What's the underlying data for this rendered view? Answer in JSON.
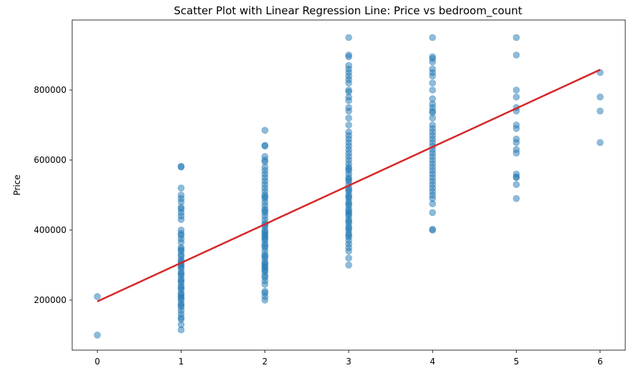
{
  "chart_data": {
    "type": "scatter",
    "title": "Scatter Plot with Linear Regression Line: Price vs bedroom_count",
    "xlabel": "",
    "ylabel": "Price",
    "xlim": [
      -0.3,
      6.3
    ],
    "ylim": [
      57000,
      1000000
    ],
    "x_ticks": [
      0,
      1,
      2,
      3,
      4,
      5,
      6
    ],
    "y_ticks": [
      200000,
      400000,
      600000,
      800000
    ],
    "x_tick_labels": [
      "0",
      "1",
      "2",
      "3",
      "4",
      "5",
      "6"
    ],
    "y_tick_labels": [
      "200000",
      "400000",
      "600000",
      "800000"
    ],
    "grid": false,
    "colors": {
      "points": "#1f77b4",
      "regression": "#d62728",
      "axes": "#000000"
    },
    "series": [
      {
        "kind": "points",
        "groups": [
          {
            "x": 0,
            "y": [
              100000,
              210000
            ]
          },
          {
            "x": 1,
            "y": [
              115000,
              130000,
              145000,
              150000,
              160000,
              170000,
              180000,
              185000,
              190000,
              200000,
              205000,
              210000,
              215000,
              220000,
              230000,
              235000,
              240000,
              250000,
              255000,
              260000,
              270000,
              275000,
              280000,
              290000,
              295000,
              300000,
              305000,
              310000,
              315000,
              325000,
              330000,
              340000,
              345000,
              350000,
              365000,
              375000,
              385000,
              390000,
              400000,
              430000,
              440000,
              450000,
              460000,
              465000,
              480000,
              490000,
              500000,
              520000,
              580000,
              582000
            ]
          },
          {
            "x": 2,
            "y": [
              200000,
              210000,
              220000,
              225000,
              245000,
              255000,
              265000,
              270000,
              280000,
              285000,
              290000,
              295000,
              300000,
              305000,
              310000,
              320000,
              325000,
              330000,
              340000,
              350000,
              355000,
              360000,
              370000,
              375000,
              380000,
              385000,
              390000,
              395000,
              400000,
              410000,
              415000,
              420000,
              430000,
              440000,
              450000,
              455000,
              460000,
              470000,
              480000,
              490000,
              495000,
              500000,
              510000,
              520000,
              530000,
              540000,
              550000,
              560000,
              570000,
              580000,
              595000,
              600000,
              610000,
              640000,
              642000,
              685000
            ]
          },
          {
            "x": 3,
            "y": [
              300000,
              320000,
              340000,
              350000,
              360000,
              370000,
              380000,
              385000,
              390000,
              400000,
              405000,
              410000,
              420000,
              425000,
              430000,
              440000,
              445000,
              450000,
              455000,
              460000,
              470000,
              475000,
              480000,
              490000,
              495000,
              500000,
              510000,
              515000,
              520000,
              530000,
              540000,
              545000,
              550000,
              560000,
              570000,
              575000,
              580000,
              590000,
              600000,
              610000,
              620000,
              630000,
              640000,
              650000,
              660000,
              670000,
              680000,
              700000,
              720000,
              740000,
              750000,
              770000,
              780000,
              795000,
              800000,
              820000,
              830000,
              840000,
              850000,
              860000,
              870000,
              895000,
              900000,
              950000
            ]
          },
          {
            "x": 4,
            "y": [
              400000,
              402000,
              450000,
              475000,
              490000,
              500000,
              510000,
              520000,
              530000,
              540000,
              550000,
              560000,
              570000,
              580000,
              590000,
              600000,
              610000,
              620000,
              630000,
              640000,
              650000,
              660000,
              670000,
              680000,
              690000,
              700000,
              720000,
              735000,
              740000,
              750000,
              760000,
              775000,
              800000,
              820000,
              840000,
              850000,
              860000,
              880000,
              890000,
              895000,
              950000
            ]
          },
          {
            "x": 5,
            "y": [
              490000,
              530000,
              550000,
              552000,
              560000,
              620000,
              630000,
              650000,
              660000,
              690000,
              700000,
              740000,
              750000,
              780000,
              800000,
              900000,
              950000
            ]
          },
          {
            "x": 6,
            "y": [
              650000,
              740000,
              780000,
              850000
            ]
          }
        ]
      },
      {
        "kind": "line",
        "x": [
          0,
          6
        ],
        "y": [
          196000,
          858000
        ]
      }
    ]
  }
}
